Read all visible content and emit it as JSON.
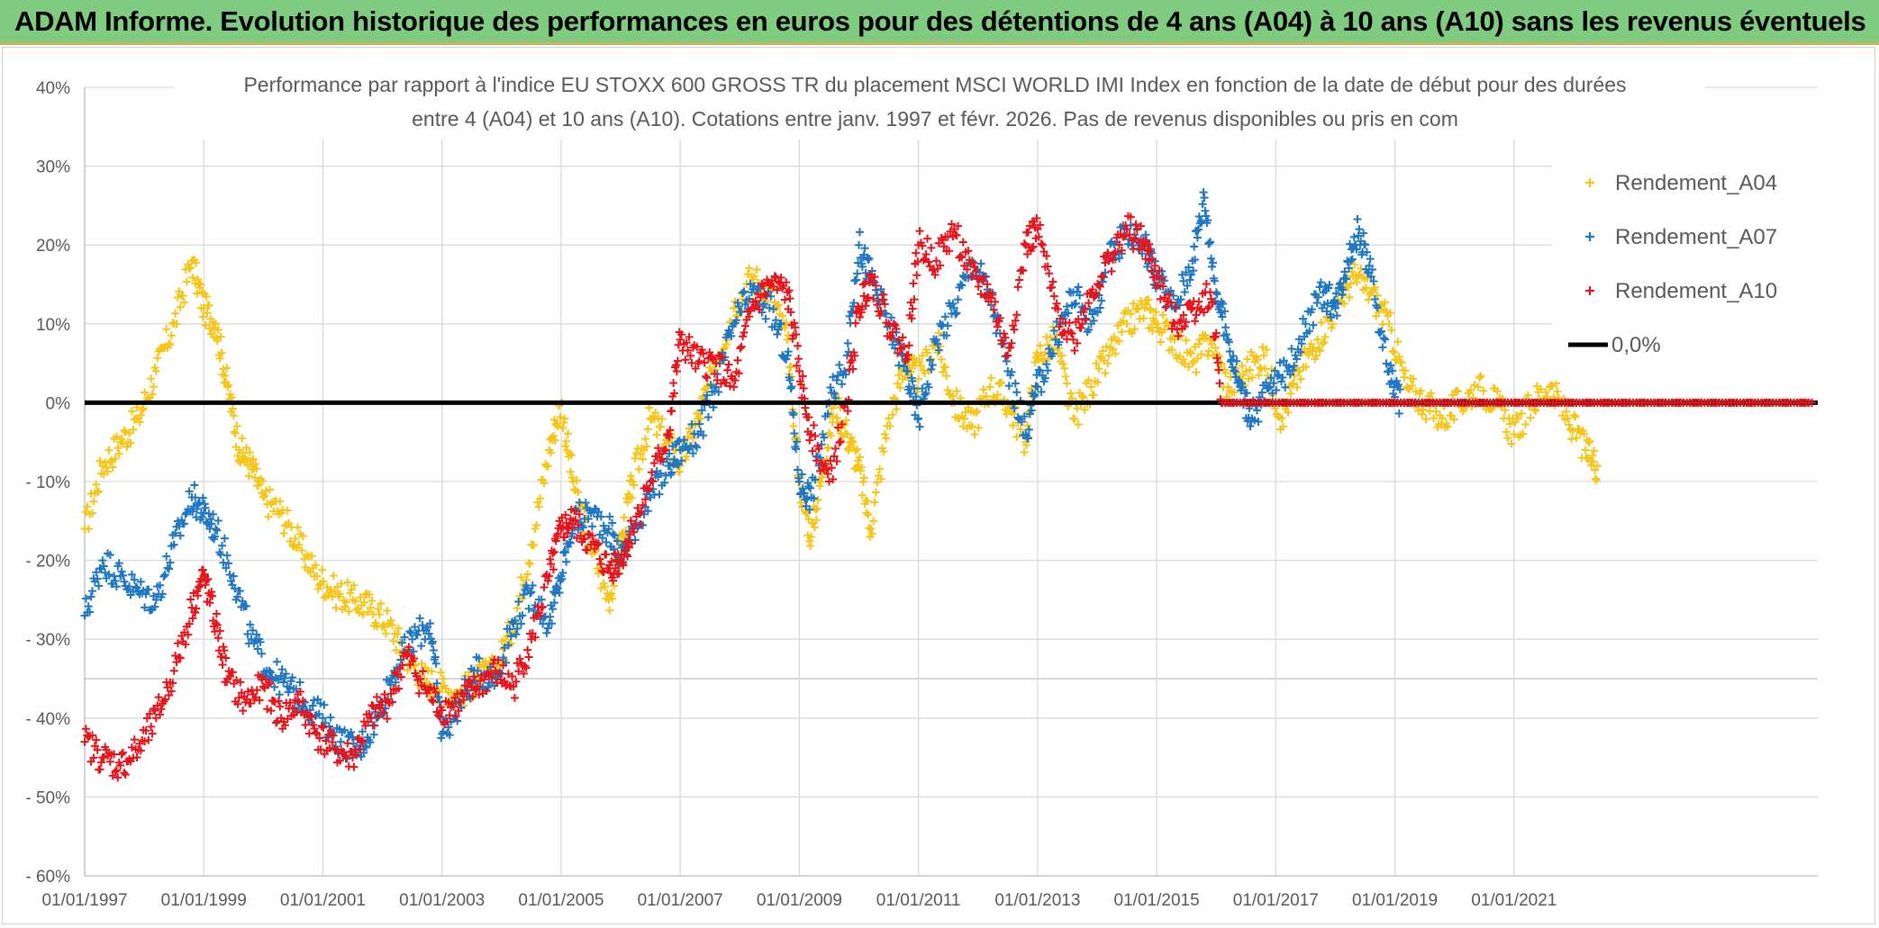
{
  "banner": {
    "title": "ADAM Informe. Evolution historique des performances en euros pour des détentions de 4 ans (A04) à 10 ans (A10) sans les revenus éventuels"
  },
  "chart_data": {
    "type": "scatter",
    "title_line1": "Performance par rapport à l'indice EU STOXX 600 GROSS TR  du placement MSCI WORLD IMI Index en fonction de la date de début pour des durées",
    "title_line2": "entre 4 (A04) et 10 ans (A10). Cotations entre janv. 1997 et févr. 2026. Pas de revenus disponibles ou pris en com",
    "xlabel": "",
    "ylabel": "",
    "xlim": [
      1997.0,
      2026.1
    ],
    "ylim": [
      -60,
      40
    ],
    "grid": true,
    "legend_position": "top-right",
    "x_tick_labels": [
      "01/01/1997",
      "01/01/1999",
      "01/01/2001",
      "01/01/2003",
      "01/01/2005",
      "01/01/2007",
      "01/01/2009",
      "01/01/2011",
      "01/01/2013",
      "01/01/2015",
      "01/01/2017",
      "01/01/2019",
      "01/01/2021"
    ],
    "x_tick_values": [
      1997,
      1999,
      2001,
      2003,
      2005,
      2007,
      2009,
      2011,
      2013,
      2015,
      2017,
      2019,
      2021
    ],
    "y_tick_labels": [
      "40%",
      "30%",
      "20%",
      "10%",
      "0%",
      "- 10%",
      "- 20%",
      "- 30%",
      "- 40%",
      "- 50%",
      "- 60%"
    ],
    "y_tick_values": [
      40,
      30,
      20,
      10,
      0,
      -10,
      -20,
      -30,
      -40,
      -50,
      -60
    ],
    "series": [
      {
        "name": "Rendement_A04",
        "color": "#f5c518",
        "x": [
          1997.0,
          1997.3,
          1997.6,
          1997.9,
          1998.2,
          1998.5,
          1998.8,
          1999.0,
          1999.2,
          1999.4,
          1999.6,
          1999.8,
          2000.0,
          2000.3,
          2000.6,
          2000.9,
          2001.2,
          2001.5,
          2001.8,
          2002.1,
          2002.4,
          2002.7,
          2003.0,
          2003.3,
          2003.6,
          2003.9,
          2004.2,
          2004.5,
          2004.8,
          2005.0,
          2005.2,
          2005.5,
          2005.8,
          2006.0,
          2006.2,
          2006.5,
          2006.8,
          2007.0,
          2007.3,
          2007.6,
          2007.9,
          2008.2,
          2008.5,
          2008.8,
          2009.0,
          2009.2,
          2009.4,
          2009.6,
          2009.8,
          2010.0,
          2010.2,
          2010.5,
          2010.8,
          2011.0,
          2011.3,
          2011.6,
          2011.9,
          2012.2,
          2012.5,
          2012.8,
          2013.0,
          2013.3,
          2013.6,
          2013.9,
          2014.2,
          2014.5,
          2014.8,
          2015.0,
          2015.3,
          2015.6,
          2015.9,
          2016.2,
          2016.5,
          2016.8,
          2017.1,
          2017.4,
          2017.7,
          2018.0,
          2018.3,
          2018.6,
          2018.9,
          2019.2,
          2019.5,
          2019.8,
          2020.1,
          2020.4,
          2020.7,
          2021.0,
          2021.3,
          2021.6,
          2021.9,
          2022.2,
          2022.4
        ],
        "values": [
          -16,
          -8,
          -5,
          -2,
          4,
          10,
          18,
          12,
          10,
          2,
          -6,
          -8,
          -12,
          -14,
          -18,
          -22,
          -24,
          -25,
          -26,
          -28,
          -32,
          -35,
          -36,
          -37,
          -35,
          -34,
          -28,
          -18,
          -6,
          0,
          -10,
          -18,
          -25,
          -18,
          -10,
          -2,
          -5,
          -8,
          -2,
          5,
          12,
          16,
          14,
          8,
          -10,
          -17,
          -8,
          0,
          -4,
          -8,
          -16,
          -2,
          5,
          3,
          8,
          0,
          -3,
          2,
          0,
          -5,
          6,
          8,
          -2,
          2,
          6,
          10,
          12,
          10,
          8,
          5,
          8,
          2,
          4,
          6,
          -2,
          4,
          8,
          12,
          16,
          14,
          10,
          2,
          0,
          -2,
          0,
          2,
          0,
          -4,
          0,
          2,
          -2,
          -6,
          -8
        ]
      },
      {
        "name": "Rendement_A07",
        "color": "#1f77c4",
        "x": [
          1997.0,
          1997.3,
          1997.6,
          1997.9,
          1998.2,
          1998.5,
          1998.8,
          1999.0,
          1999.2,
          1999.5,
          1999.8,
          2000.1,
          2000.4,
          2000.7,
          2001.0,
          2001.3,
          2001.6,
          2001.9,
          2002.2,
          2002.5,
          2002.8,
          2003.0,
          2003.3,
          2003.6,
          2003.9,
          2004.2,
          2004.5,
          2004.8,
          2005.0,
          2005.2,
          2005.5,
          2005.8,
          2006.0,
          2006.2,
          2006.5,
          2006.8,
          2007.0,
          2007.3,
          2007.6,
          2007.9,
          2008.2,
          2008.5,
          2008.8,
          2009.0,
          2009.2,
          2009.5,
          2009.8,
          2010.0,
          2010.2,
          2010.5,
          2010.8,
          2011.0,
          2011.3,
          2011.6,
          2011.9,
          2012.2,
          2012.5,
          2012.8,
          2013.0,
          2013.3,
          2013.6,
          2013.9,
          2014.2,
          2014.5,
          2014.8,
          2015.0,
          2015.3,
          2015.6,
          2015.8,
          2016.0,
          2016.2,
          2016.4,
          2016.6,
          2016.9,
          2017.2,
          2017.5,
          2017.8,
          2018.0,
          2018.2,
          2018.4,
          2018.6,
          2018.9,
          2019.1
        ],
        "values": [
          -27,
          -20,
          -22,
          -24,
          -25,
          -18,
          -12,
          -14,
          -16,
          -22,
          -30,
          -34,
          -36,
          -38,
          -40,
          -43,
          -44,
          -40,
          -34,
          -30,
          -28,
          -42,
          -38,
          -34,
          -35,
          -28,
          -24,
          -28,
          -22,
          -15,
          -14,
          -16,
          -20,
          -16,
          -12,
          -8,
          -6,
          -4,
          2,
          10,
          14,
          12,
          6,
          -10,
          -12,
          0,
          6,
          20,
          16,
          10,
          4,
          -2,
          8,
          12,
          18,
          14,
          4,
          -4,
          2,
          8,
          14,
          10,
          18,
          22,
          20,
          16,
          12,
          18,
          26,
          14,
          8,
          2,
          -2,
          2,
          4,
          10,
          14,
          12,
          18,
          22,
          16,
          4,
          0
        ]
      },
      {
        "name": "Rendement_A10",
        "color": "#e8141c",
        "x": [
          1997.0,
          1997.3,
          1997.6,
          1997.9,
          1998.2,
          1998.5,
          1998.8,
          1999.0,
          1999.2,
          1999.4,
          1999.7,
          2000.0,
          2000.3,
          2000.6,
          2000.9,
          2001.2,
          2001.5,
          2001.8,
          2002.1,
          2002.4,
          2002.7,
          2003.0,
          2003.3,
          2003.6,
          2003.9,
          2004.2,
          2004.5,
          2004.8,
          2005.0,
          2005.2,
          2005.5,
          2005.8,
          2006.0,
          2006.2,
          2006.5,
          2006.8,
          2007.0,
          2007.3,
          2007.6,
          2007.9,
          2008.2,
          2008.5,
          2008.8,
          2009.0,
          2009.2,
          2009.5,
          2009.8,
          2010.0,
          2010.2,
          2010.5,
          2010.8,
          2011.0,
          2011.3,
          2011.6,
          2011.9,
          2012.2,
          2012.5,
          2012.8,
          2013.0,
          2013.3,
          2013.6,
          2013.9,
          2014.2,
          2014.5,
          2014.8,
          2015.0,
          2015.3,
          2015.6,
          2015.9,
          2016.1
        ],
        "values": [
          -43,
          -45,
          -46,
          -44,
          -40,
          -34,
          -26,
          -22,
          -28,
          -35,
          -38,
          -36,
          -40,
          -38,
          -42,
          -44,
          -45,
          -40,
          -38,
          -32,
          -36,
          -39,
          -38,
          -36,
          -34,
          -36,
          -30,
          -22,
          -16,
          -15,
          -18,
          -21,
          -20,
          -16,
          -10,
          -4,
          8,
          5,
          5,
          2,
          12,
          15,
          14,
          4,
          -4,
          -10,
          0,
          12,
          16,
          10,
          6,
          20,
          18,
          22,
          16,
          14,
          6,
          20,
          22,
          12,
          8,
          14,
          18,
          22,
          20,
          16,
          10,
          12,
          14,
          0
        ]
      },
      {
        "name": "0,0%",
        "color": "#000000",
        "x": [
          1997.0,
          2026.1
        ],
        "values": [
          0,
          0
        ]
      }
    ]
  }
}
